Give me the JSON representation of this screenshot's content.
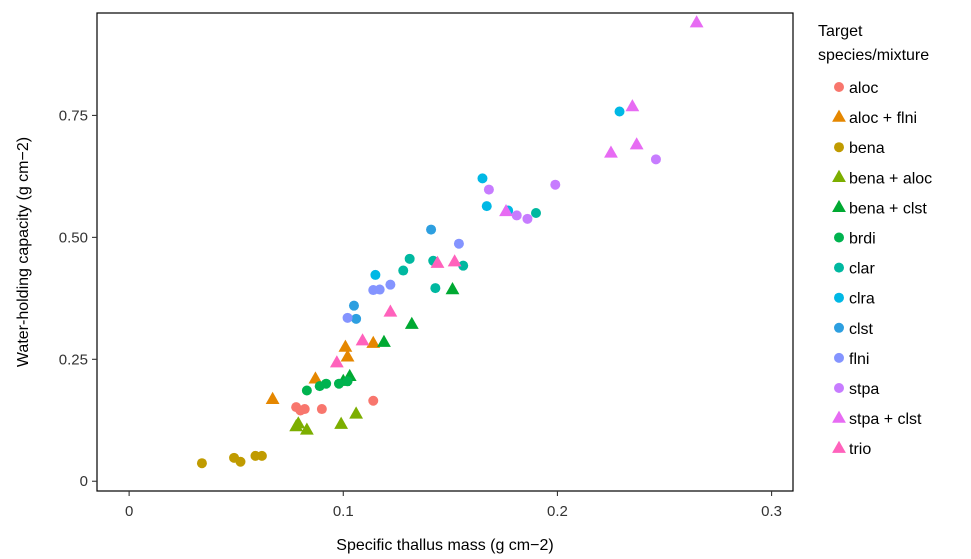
{
  "chart_data": {
    "type": "scatter",
    "title": "",
    "xlabel": "Specific thallus mass (g cm−2)",
    "ylabel": "Water-holding capacity (g cm−2)",
    "xlim": [
      -0.015,
      0.31
    ],
    "ylim": [
      -0.02,
      0.96
    ],
    "x_ticks": [
      0,
      0.1,
      0.2,
      0.3
    ],
    "x_tick_labels": [
      "0",
      "0.1",
      "0.2",
      "0.3"
    ],
    "y_ticks": [
      0,
      0.25,
      0.5,
      0.75
    ],
    "y_tick_labels": [
      "0",
      "0.25",
      "0.50",
      "0.75"
    ],
    "grid": false,
    "legend": {
      "title_lines": [
        "Target",
        "species/mixture"
      ],
      "placement": "right"
    },
    "series": [
      {
        "name": "aloc",
        "marker": "circle",
        "color": "#F8766D",
        "x": [
          0.078,
          0.08,
          0.082,
          0.09,
          0.114
        ],
        "y": [
          0.152,
          0.145,
          0.148,
          0.148,
          0.165
        ]
      },
      {
        "name": "aloc + flni",
        "marker": "triangle",
        "color": "#E58700",
        "x": [
          0.067,
          0.087,
          0.101,
          0.102,
          0.114
        ],
        "y": [
          0.168,
          0.21,
          0.275,
          0.255,
          0.283
        ]
      },
      {
        "name": "bena",
        "marker": "circle",
        "color": "#C09B00",
        "x": [
          0.034,
          0.049,
          0.052,
          0.059,
          0.062
        ],
        "y": [
          0.037,
          0.048,
          0.04,
          0.052,
          0.052
        ]
      },
      {
        "name": "bena + aloc",
        "marker": "triangle",
        "color": "#7CAE00",
        "x": [
          0.078,
          0.079,
          0.083,
          0.099,
          0.106
        ],
        "y": [
          0.112,
          0.118,
          0.105,
          0.117,
          0.138
        ]
      },
      {
        "name": "bena + clst",
        "marker": "triangle",
        "color": "#00A932",
        "x": [
          0.1,
          0.103,
          0.119,
          0.132,
          0.151
        ],
        "y": [
          0.205,
          0.215,
          0.285,
          0.322,
          0.393
        ]
      },
      {
        "name": "brdi",
        "marker": "circle",
        "color": "#00B34F",
        "x": [
          0.083,
          0.089,
          0.092,
          0.098,
          0.102
        ],
        "y": [
          0.186,
          0.195,
          0.2,
          0.2,
          0.205
        ]
      },
      {
        "name": "clar",
        "marker": "circle",
        "color": "#00B8A0",
        "x": [
          0.128,
          0.131,
          0.142,
          0.143,
          0.156,
          0.19
        ],
        "y": [
          0.432,
          0.456,
          0.452,
          0.396,
          0.442,
          0.55
        ]
      },
      {
        "name": "clra",
        "marker": "circle",
        "color": "#00B8E5",
        "x": [
          0.115,
          0.165,
          0.167,
          0.177,
          0.229
        ],
        "y": [
          0.423,
          0.621,
          0.564,
          0.555,
          0.758
        ]
      },
      {
        "name": "clst",
        "marker": "circle",
        "color": "#2D9FE0",
        "x": [
          0.105,
          0.106,
          0.141
        ],
        "y": [
          0.36,
          0.333,
          0.516
        ]
      },
      {
        "name": "flni",
        "marker": "circle",
        "color": "#8494FF",
        "x": [
          0.102,
          0.114,
          0.117,
          0.122,
          0.154
        ],
        "y": [
          0.335,
          0.392,
          0.393,
          0.403,
          0.487
        ]
      },
      {
        "name": "stpa",
        "marker": "circle",
        "color": "#C77CFF",
        "x": [
          0.168,
          0.181,
          0.186,
          0.199,
          0.246
        ],
        "y": [
          0.598,
          0.545,
          0.538,
          0.608,
          0.66
        ]
      },
      {
        "name": "stpa + clst",
        "marker": "triangle",
        "color": "#E76BF3",
        "x": [
          0.176,
          0.225,
          0.235,
          0.237,
          0.265
        ],
        "y": [
          0.553,
          0.673,
          0.768,
          0.69,
          0.94
        ]
      },
      {
        "name": "trio",
        "marker": "triangle",
        "color": "#FF62BC",
        "x": [
          0.097,
          0.109,
          0.122,
          0.144,
          0.152
        ],
        "y": [
          0.243,
          0.288,
          0.347,
          0.447,
          0.45
        ]
      }
    ]
  }
}
